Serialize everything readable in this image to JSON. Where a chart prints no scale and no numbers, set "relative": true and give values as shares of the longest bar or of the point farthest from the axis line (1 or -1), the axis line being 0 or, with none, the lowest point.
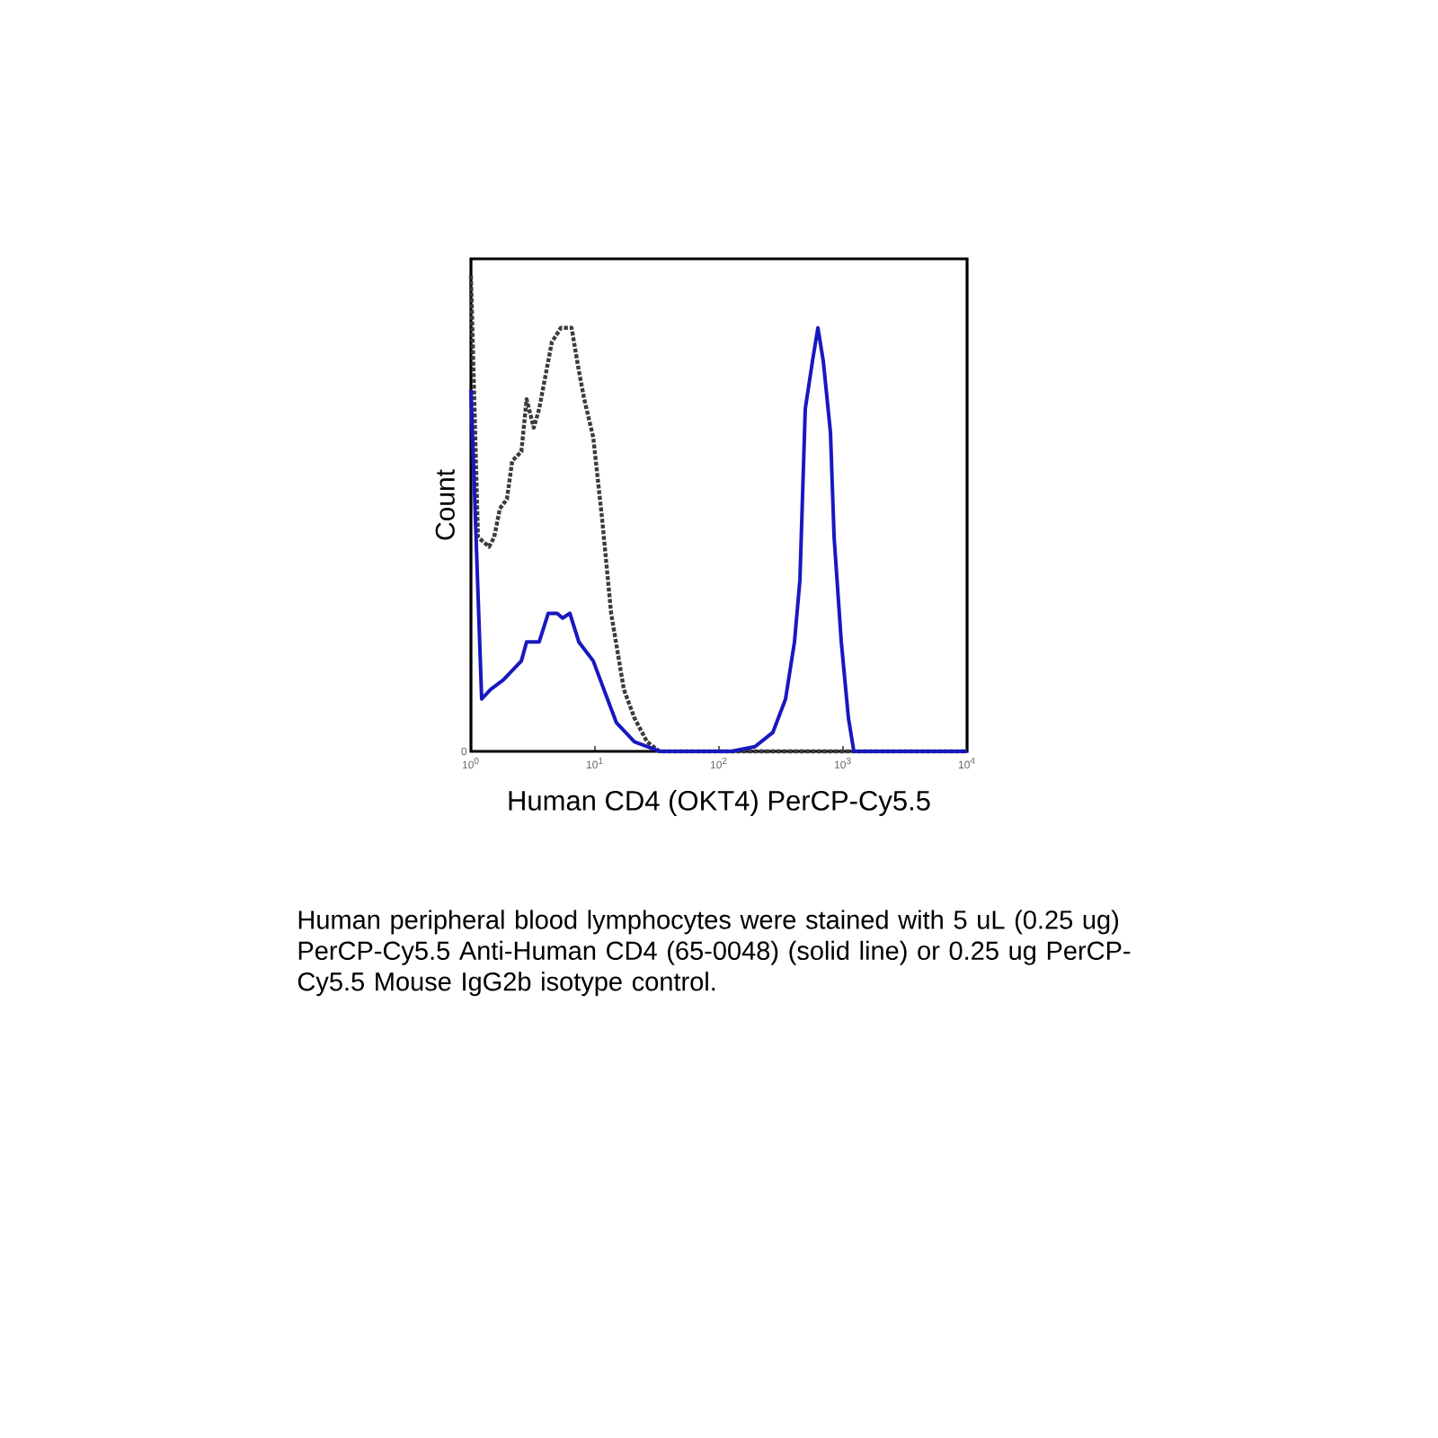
{
  "chart_data": {
    "type": "line",
    "relative": true,
    "xlabel": "Human CD4 (OKT4) PerCP-Cy5.5",
    "ylabel": "Count",
    "log": "x",
    "xlim": [
      1,
      10000
    ],
    "xticks": [
      {
        "value": 1,
        "label": "10$^{0}$"
      },
      {
        "value": 10,
        "label": "10$^{1}$"
      },
      {
        "value": 100,
        "label": "10$^{2}$"
      },
      {
        "value": 1000,
        "label": "10$^{3}$"
      },
      {
        "value": 10000,
        "label": "10$^{4}$"
      }
    ],
    "series": [
      {
        "color": "#3c3c3c",
        "line_style": "dotted",
        "x": [
          1,
          1.14,
          1.4,
          1.54,
          1.71,
          1.95,
          2.15,
          2.55,
          2.81,
          3.21,
          3.55,
          4.49,
          5.31,
          5.86,
          6.48,
          7.41,
          8.19,
          9.68,
          11.4,
          13.5,
          17.1,
          20.8,
          26.3,
          33.2,
          100,
          1000,
          10000
        ],
        "values": [
          1.0,
          0.45,
          0.43,
          0.45,
          0.51,
          0.53,
          0.61,
          0.63,
          0.74,
          0.68,
          0.72,
          0.86,
          0.89,
          0.89,
          0.89,
          0.8,
          0.74,
          0.66,
          0.49,
          0.29,
          0.13,
          0.07,
          0.02,
          0,
          0,
          0,
          0
        ]
      },
      {
        "color": "#1818c0",
        "line_style": "solid",
        "x": [
          1,
          1.22,
          1.44,
          1.82,
          2.55,
          2.81,
          3.55,
          4.2,
          4.96,
          5.48,
          6.27,
          7.41,
          9.68,
          12.2,
          14.9,
          20.8,
          33.2,
          51.3,
          126,
          195,
          272,
          344,
          406,
          449,
          496,
          567,
          627,
          693,
          792,
          847,
          968,
          1105,
          1222,
          10000
        ],
        "values": [
          0.76,
          0.11,
          0.13,
          0.15,
          0.19,
          0.23,
          0.23,
          0.29,
          0.29,
          0.28,
          0.29,
          0.23,
          0.19,
          0.12,
          0.06,
          0.02,
          0,
          0,
          0,
          0.01,
          0.04,
          0.11,
          0.23,
          0.36,
          0.72,
          0.82,
          0.89,
          0.82,
          0.67,
          0.45,
          0.23,
          0.07,
          0,
          0
        ]
      }
    ],
    "annotations": [
      "0",
      "Human peripheral blood lymphocytes were stained with 5 uL (0.25 ug) PerCP-Cy5.5 Anti-Human CD4 (65-0048) (solid line) or 0.25 ug PerCP-Cy5.5 Mouse IgG2b isotype control."
    ]
  }
}
